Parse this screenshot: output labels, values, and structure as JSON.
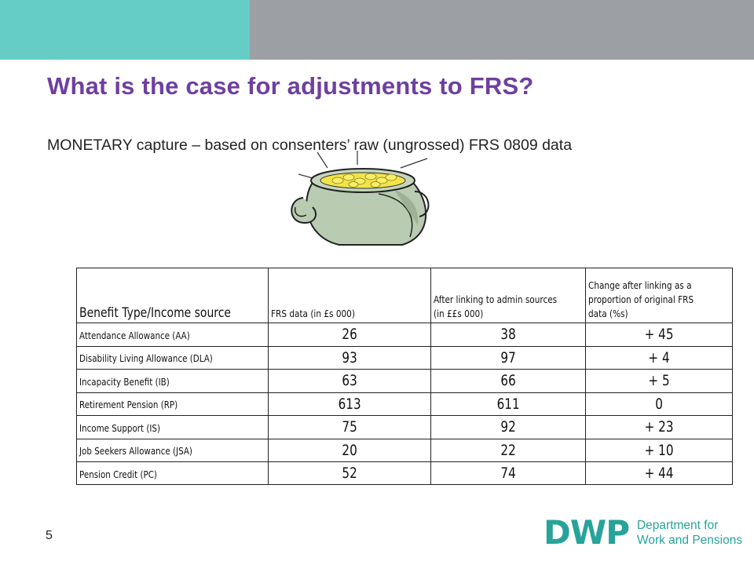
{
  "slide": {
    "title": "What is the case for adjustments to FRS?",
    "subtitle": "MONETARY capture – based on consenters’ raw (ungrossed) FRS 0809 data",
    "page_number": "5"
  },
  "table": {
    "headers": [
      "Benefit Type/Income source",
      "FRS data (in £s 000)",
      "After linking to admin sources (in ££s 000)",
      "Change after linking as a proportion of original FRS data (%s)"
    ],
    "rows": [
      {
        "label": "Attendance Allowance (AA)",
        "frs": "26",
        "admin": "38",
        "change": "+ 45"
      },
      {
        "label": "Disability Living Allowance (DLA)",
        "frs": "93",
        "admin": "97",
        "change": "+ 4"
      },
      {
        "label": "Incapacity Benefit (IB)",
        "frs": "63",
        "admin": "66",
        "change": "+ 5"
      },
      {
        "label": "Retirement Pension (RP)",
        "frs": "613",
        "admin": "611",
        "change": "0"
      },
      {
        "label": "Income Support (IS)",
        "frs": "75",
        "admin": "92",
        "change": "+ 23"
      },
      {
        "label": "Job Seekers Allowance (JSA)",
        "frs": "20",
        "admin": "22",
        "change": "+ 10"
      },
      {
        "label": "Pension Credit (PC)",
        "frs": "52",
        "admin": "74",
        "change": "+ 44"
      }
    ]
  },
  "logo": {
    "mark": "DWP",
    "line1": "Department for",
    "line2": "Work and Pensions"
  },
  "colors": {
    "title": "#6e3fa0",
    "teal": "#66cdc6",
    "gray_bar": "#9c9fa4",
    "logo": "#27a39a"
  },
  "illustration": "pot-of-gold-icon"
}
